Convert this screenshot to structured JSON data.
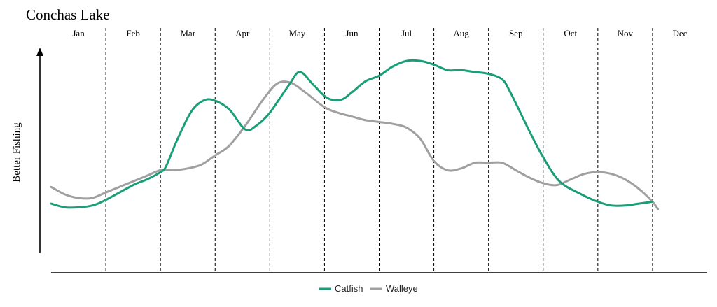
{
  "chart_data": {
    "type": "line",
    "title": "Conchas Lake",
    "ylabel": "Better Fishing",
    "xlabel": "",
    "categories": [
      "Jan",
      "Feb",
      "Mar",
      "Apr",
      "May",
      "Jun",
      "Jul",
      "Aug",
      "Sep",
      "Oct",
      "Nov",
      "Dec"
    ],
    "x_range": [
      0,
      12
    ],
    "ylim": [
      0,
      1
    ],
    "grid": "vertical dashed month dividers",
    "legend_position": "bottom-center",
    "series": [
      {
        "name": "Catfish",
        "color": "#1a9e77",
        "points": [
          [
            0.0,
            0.26
          ],
          [
            0.25,
            0.24
          ],
          [
            0.5,
            0.24
          ],
          [
            0.75,
            0.25
          ],
          [
            1.0,
            0.28
          ],
          [
            1.5,
            0.36
          ],
          [
            1.75,
            0.39
          ],
          [
            2.0,
            0.43
          ],
          [
            2.1,
            0.46
          ],
          [
            2.3,
            0.6
          ],
          [
            2.55,
            0.75
          ],
          [
            2.75,
            0.81
          ],
          [
            2.95,
            0.82
          ],
          [
            3.25,
            0.77
          ],
          [
            3.55,
            0.66
          ],
          [
            3.75,
            0.68
          ],
          [
            4.0,
            0.75
          ],
          [
            4.35,
            0.9
          ],
          [
            4.55,
            0.97
          ],
          [
            4.8,
            0.9
          ],
          [
            5.05,
            0.83
          ],
          [
            5.3,
            0.82
          ],
          [
            5.5,
            0.86
          ],
          [
            5.75,
            0.92
          ],
          [
            6.0,
            0.95
          ],
          [
            6.25,
            1.0
          ],
          [
            6.5,
            1.03
          ],
          [
            6.75,
            1.03
          ],
          [
            7.0,
            1.01
          ],
          [
            7.25,
            0.98
          ],
          [
            7.5,
            0.98
          ],
          [
            7.75,
            0.97
          ],
          [
            8.0,
            0.96
          ],
          [
            8.25,
            0.93
          ],
          [
            8.4,
            0.86
          ],
          [
            8.75,
            0.65
          ],
          [
            9.0,
            0.51
          ],
          [
            9.3,
            0.38
          ],
          [
            9.7,
            0.31
          ],
          [
            10.0,
            0.27
          ],
          [
            10.25,
            0.25
          ],
          [
            10.5,
            0.25
          ],
          [
            10.75,
            0.26
          ],
          [
            11.0,
            0.27
          ]
        ]
      },
      {
        "name": "Walleye",
        "color": "#a0a0a0",
        "points": [
          [
            0.0,
            0.35
          ],
          [
            0.25,
            0.31
          ],
          [
            0.5,
            0.29
          ],
          [
            0.75,
            0.29
          ],
          [
            1.0,
            0.32
          ],
          [
            1.5,
            0.38
          ],
          [
            1.75,
            0.41
          ],
          [
            2.0,
            0.44
          ],
          [
            2.25,
            0.44
          ],
          [
            2.5,
            0.45
          ],
          [
            2.75,
            0.47
          ],
          [
            3.0,
            0.52
          ],
          [
            3.25,
            0.57
          ],
          [
            3.55,
            0.68
          ],
          [
            3.9,
            0.83
          ],
          [
            4.15,
            0.91
          ],
          [
            4.4,
            0.91
          ],
          [
            4.65,
            0.86
          ],
          [
            5.0,
            0.78
          ],
          [
            5.25,
            0.75
          ],
          [
            5.5,
            0.73
          ],
          [
            5.75,
            0.71
          ],
          [
            6.0,
            0.7
          ],
          [
            6.25,
            0.69
          ],
          [
            6.5,
            0.67
          ],
          [
            6.75,
            0.61
          ],
          [
            7.0,
            0.49
          ],
          [
            7.25,
            0.44
          ],
          [
            7.5,
            0.45
          ],
          [
            7.75,
            0.48
          ],
          [
            8.0,
            0.48
          ],
          [
            8.25,
            0.48
          ],
          [
            8.5,
            0.44
          ],
          [
            8.75,
            0.4
          ],
          [
            9.0,
            0.37
          ],
          [
            9.25,
            0.36
          ],
          [
            9.5,
            0.39
          ],
          [
            9.75,
            0.42
          ],
          [
            10.0,
            0.43
          ],
          [
            10.25,
            0.42
          ],
          [
            10.5,
            0.39
          ],
          [
            10.75,
            0.34
          ],
          [
            11.0,
            0.27
          ],
          [
            11.1,
            0.23
          ]
        ]
      }
    ]
  }
}
